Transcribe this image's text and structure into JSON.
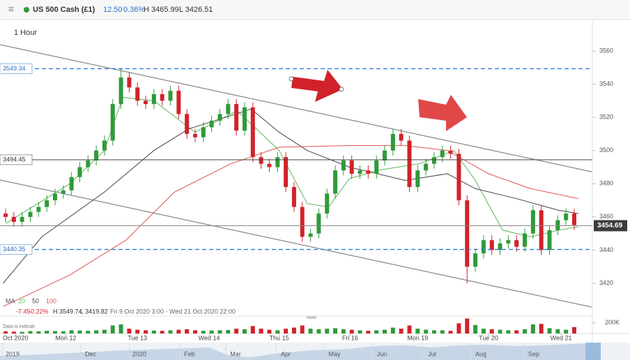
{
  "chart_data": {
    "type": "candlestick",
    "title": "US 500 Cash (£1)",
    "change": "12.50",
    "change_pct": "0.36%",
    "session_high": "H 3465.99",
    "session_low": "L 3426.51",
    "interval": "1 Hour",
    "ma_label": "MA",
    "range_change": "-7.45",
    "range_change_pct": "-0.22%",
    "range_high": "H 3549.74",
    "range_low": "L 3419.82",
    "range_period": "Fri 9 Oct 2020 3:00 - Wed 21 Oct 2020 22:00",
    "disclaimer": "Data is indicati",
    "up_color": "#2f9a3a",
    "down_color": "#d1222b",
    "ylim": [
      3401.5,
      3578.1
    ],
    "yticks": [
      3420,
      3440,
      3460,
      3480,
      3500,
      3520,
      3540,
      3560
    ],
    "xlim": [
      -0.68,
      71.2
    ],
    "xticks": [
      {
        "value": 1.2,
        "label": "Oct 2020"
      },
      {
        "value": 7.3,
        "label": "Mon 12"
      },
      {
        "value": 16,
        "label": "Tue 13"
      },
      {
        "value": 24.7,
        "label": "Wed 14"
      },
      {
        "value": 33.2,
        "label": "Thu 15"
      },
      {
        "value": 41.8,
        "label": "Fri 16"
      },
      {
        "value": 50,
        "label": "Mon 19"
      },
      {
        "value": 58.6,
        "label": "Tue 20"
      },
      {
        "value": 67.4,
        "label": "Wed 21"
      }
    ],
    "levels": [
      3549.34,
      3494.45,
      3440.35
    ],
    "level_styles": [
      "dashed",
      "solid",
      "dashed"
    ],
    "last_price": 3454.69,
    "open": [
      3462,
      3460,
      3457,
      3460,
      3463,
      3466,
      3470,
      3474,
      3476,
      3484,
      3490,
      3494,
      3500,
      3506,
      3528,
      3544,
      3538,
      3530,
      3528,
      3534,
      3530,
      3536,
      3522,
      3510,
      3508,
      3514,
      3518,
      3522,
      3528,
      3512,
      3526,
      3496,
      3492,
      3490,
      3496,
      3478,
      3466,
      3448,
      3450,
      3462,
      3474,
      3488,
      3494,
      3486,
      3488,
      3486,
      3494,
      3500,
      3510,
      3506,
      3478,
      3488,
      3492,
      3496,
      3500,
      3498,
      3470,
      3430,
      3438,
      3446,
      3440,
      3444,
      3446,
      3442,
      3450,
      3464,
      3440,
      3452,
      3458,
      3462
    ],
    "high": [
      3465,
      3463,
      3463,
      3466,
      3469,
      3473,
      3477,
      3479,
      3487,
      3493,
      3497,
      3503,
      3509,
      3531,
      3549.74,
      3547,
      3541,
      3533,
      3537,
      3537,
      3539,
      3539,
      3525,
      3513,
      3517,
      3521,
      3525,
      3531,
      3531,
      3529,
      3529,
      3499,
      3495,
      3499,
      3499,
      3481,
      3469,
      3453,
      3465,
      3477,
      3491,
      3497,
      3497,
      3491,
      3491,
      3497,
      3503,
      3513,
      3513,
      3509,
      3491,
      3495,
      3499,
      3503,
      3503,
      3501,
      3473,
      3441,
      3449,
      3449,
      3447,
      3449,
      3449,
      3453,
      3467,
      3467,
      3455,
      3461,
      3465,
      3465
    ],
    "low": [
      3457,
      3454,
      3454,
      3457,
      3460,
      3463,
      3467,
      3471,
      3473,
      3481,
      3487,
      3491,
      3497,
      3503,
      3525,
      3535,
      3527,
      3525,
      3525,
      3527,
      3527,
      3519,
      3507,
      3505,
      3505,
      3511,
      3515,
      3519,
      3509,
      3509,
      3493,
      3489,
      3487,
      3487,
      3475,
      3463,
      3445,
      3445,
      3447,
      3459,
      3471,
      3485,
      3483,
      3483,
      3483,
      3483,
      3491,
      3497,
      3503,
      3475,
      3475,
      3485,
      3489,
      3493,
      3495,
      3467,
      3419.82,
      3427,
      3435,
      3437,
      3437,
      3441,
      3439,
      3439,
      3447,
      3437,
      3437,
      3449,
      3455,
      3452
    ],
    "close": [
      3460,
      3457,
      3460,
      3463,
      3466,
      3470,
      3474,
      3476,
      3484,
      3490,
      3494,
      3500,
      3506,
      3528,
      3544,
      3538,
      3530,
      3528,
      3534,
      3530,
      3536,
      3522,
      3510,
      3508,
      3514,
      3518,
      3522,
      3528,
      3512,
      3526,
      3496,
      3492,
      3490,
      3496,
      3478,
      3466,
      3448,
      3450,
      3462,
      3474,
      3488,
      3494,
      3486,
      3488,
      3486,
      3494,
      3500,
      3510,
      3506,
      3478,
      3488,
      3492,
      3496,
      3500,
      3498,
      3470,
      3430,
      3438,
      3446,
      3440,
      3444,
      3446,
      3442,
      3450,
      3464,
      3440,
      3452,
      3458,
      3462,
      3455
    ],
    "series": [
      {
        "name": "20",
        "color": "#5cb85c",
        "x": [
          0,
          7.8,
          12,
          14.2,
          18,
          23,
          28.1,
          33.2,
          36.6,
          39.2,
          41.7,
          45.1,
          50.2,
          54.4,
          57,
          60.3,
          63.7,
          67.1,
          69.5
        ],
        "values": [
          3456,
          3480,
          3500,
          3532,
          3530,
          3511,
          3524,
          3500,
          3468,
          3466,
          3483,
          3488,
          3492,
          3500,
          3482,
          3452,
          3448,
          3452,
          3454
        ]
      },
      {
        "name": "50",
        "color": "#444444",
        "x": [
          -0.3,
          4.4,
          12,
          18,
          22.2,
          27.3,
          29.8,
          33.2,
          36.6,
          41.7,
          48.5,
          53.6,
          57,
          62,
          67.1,
          69.5
        ],
        "values": [
          3420,
          3448,
          3475,
          3500,
          3513,
          3521,
          3525,
          3511,
          3500,
          3490,
          3482,
          3486,
          3477,
          3471,
          3464,
          3462
        ]
      },
      {
        "name": "100",
        "color": "#e0534f",
        "x": [
          -0.3,
          7.8,
          14.6,
          20.5,
          27.3,
          33.2,
          41.7,
          48.5,
          53.6,
          58.6,
          63.7,
          69.5
        ],
        "values": [
          3406,
          3425,
          3446,
          3475,
          3492,
          3502,
          3503,
          3503,
          3500,
          3486,
          3477,
          3471
        ]
      }
    ],
    "volume": [
      40000,
      35000,
      30000,
      45000,
      40000,
      50000,
      45000,
      40000,
      60000,
      55000,
      50000,
      60000,
      70000,
      150000,
      170000,
      90000,
      70000,
      60000,
      55000,
      50000,
      60000,
      70000,
      80000,
      60000,
      50000,
      55000,
      60000,
      65000,
      90000,
      80000,
      140000,
      90000,
      70000,
      60000,
      90000,
      110000,
      150000,
      90000,
      80000,
      90000,
      100000,
      80000,
      70000,
      60000,
      50000,
      60000,
      70000,
      110000,
      90000,
      150000,
      90000,
      70000,
      60000,
      60000,
      50000,
      190000,
      280000,
      160000,
      90000,
      80000,
      70000,
      60000,
      60000,
      80000,
      170000,
      180000,
      100000,
      80000,
      70000,
      120000
    ],
    "volume_ylim": [
      0,
      300000
    ],
    "volume_ticks": [
      {
        "value": 200000,
        "label": "200K"
      }
    ],
    "navigator_labels": [
      "2019",
      "Dec",
      "2020",
      "Feb",
      "Mar",
      "Apr",
      "May",
      "Jun",
      "Jul",
      "Aug",
      "Sep"
    ]
  }
}
